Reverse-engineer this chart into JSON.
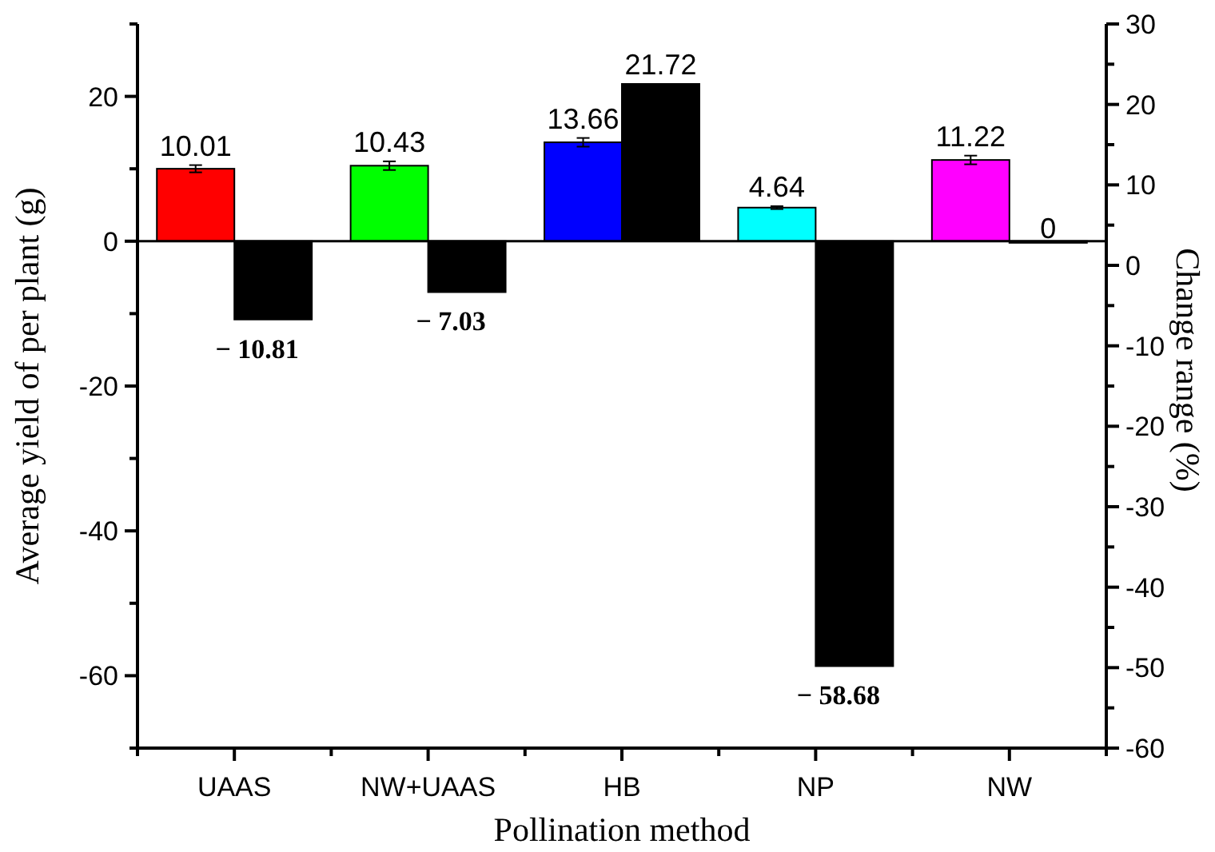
{
  "chart_data": {
    "type": "bar",
    "xlabel": "Pollination method",
    "ylabel": "Average yield of per plant (g)",
    "y2label": "Change range (%)",
    "categories": [
      "UAAS",
      "NW+UAAS",
      "HB",
      "NP",
      "NW"
    ],
    "series": [
      {
        "colors": [
          "#ff0000",
          "#00ff00",
          "#0000ff",
          "#00ffff",
          "#ff00ff"
        ],
        "values": [
          10.01,
          10.43,
          13.66,
          4.64,
          11.22
        ],
        "errors": [
          0.5,
          0.6,
          0.6,
          0.2,
          0.6
        ],
        "value_labels": [
          "10.01",
          "10.43",
          "13.66",
          "4.64",
          "11.22"
        ]
      },
      {
        "color": "#000000",
        "values": [
          -10.81,
          -7.03,
          21.72,
          -58.68,
          0
        ],
        "value_labels": [
          "− 10.81",
          "− 7.03",
          "21.72",
          "− 58.68",
          "0"
        ]
      }
    ],
    "ylim": [
      -70,
      30
    ],
    "yticks": [
      {
        "value": -60,
        "label": "-60"
      },
      {
        "value": -40,
        "label": "-40"
      },
      {
        "value": -20,
        "label": "-20"
      },
      0,
      20
    ],
    "y2lim": [
      -60,
      30
    ],
    "y2ticks": [
      {
        "value": -60,
        "label": "-60"
      },
      {
        "value": -50,
        "label": "-50"
      },
      {
        "value": -40,
        "label": "-40"
      },
      {
        "value": -30,
        "label": "-30"
      },
      {
        "value": -20,
        "label": "-20"
      },
      {
        "value": -10,
        "label": "-10"
      },
      0,
      10,
      20,
      30
    ]
  }
}
